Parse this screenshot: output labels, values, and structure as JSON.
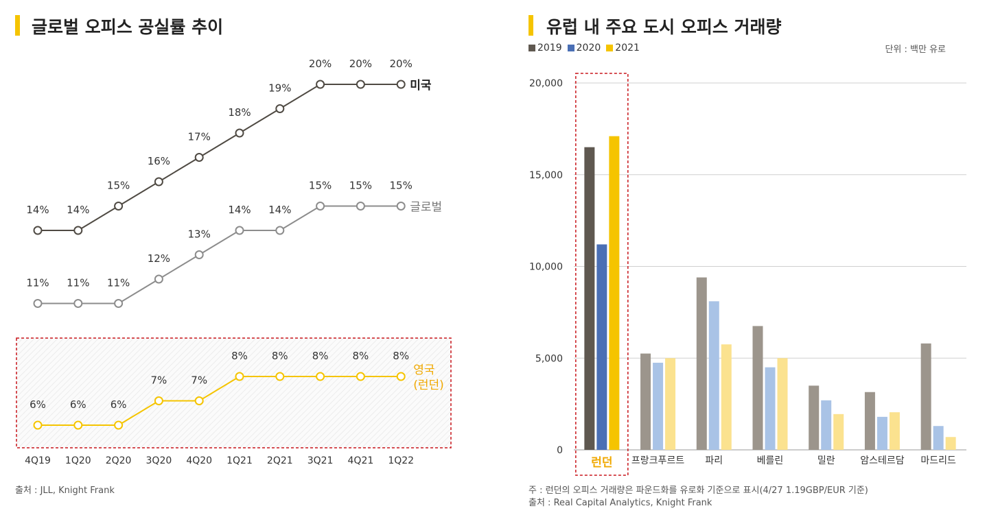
{
  "left": {
    "title": "글로벌 오피스 공실률 추이",
    "source": "출처 : JLL, Knight Frank"
  },
  "right": {
    "title": "유럽 내 주요 도시 오피스 거래량",
    "unit": "단위 : 백만 유로",
    "note": "주 : 런던의 오피스 거래량은 파운드화를 유로화 기준으로 표시(4/27 1.19GBP/EUR 기준)",
    "source": "출처 : Real Capital Analytics, Knight Frank"
  },
  "chart_data": [
    {
      "type": "line",
      "categories": [
        "4Q19",
        "1Q20",
        "2Q20",
        "3Q20",
        "4Q20",
        "1Q21",
        "2Q21",
        "3Q21",
        "4Q21",
        "1Q22"
      ],
      "series": [
        {
          "name": "미국",
          "values": [
            14,
            14,
            15,
            16,
            17,
            18,
            19,
            20,
            20,
            20
          ],
          "color": "#4f4a43"
        },
        {
          "name": "글로벌",
          "values": [
            11,
            11,
            11,
            12,
            13,
            14,
            14,
            15,
            15,
            15
          ],
          "color": "#8c8c8c"
        },
        {
          "name": "영국\n(런던)",
          "values": [
            6,
            6,
            6,
            7,
            7,
            8,
            8,
            8,
            8,
            8
          ],
          "color": "#f5c400"
        }
      ],
      "value_suffix": "%"
    },
    {
      "type": "bar",
      "categories": [
        "런던",
        "프랑크푸르트",
        "파리",
        "베를린",
        "밀란",
        "암스테르담",
        "마드리드"
      ],
      "series": [
        {
          "name": "2019",
          "values": [
            16500,
            5250,
            9400,
            6750,
            3500,
            3150,
            5800
          ],
          "color": "#5f5850",
          "muted": "#9c958c"
        },
        {
          "name": "2020",
          "values": [
            11200,
            4750,
            8100,
            4500,
            2700,
            1800,
            1300
          ],
          "color": "#4a6fb5",
          "muted": "#a9c3e6"
        },
        {
          "name": "2021",
          "values": [
            17100,
            5000,
            5750,
            5000,
            1950,
            2050,
            700
          ],
          "color": "#f5c400",
          "muted": "#fbe28f"
        }
      ],
      "yticks": [
        "0",
        "5,000",
        "10,000",
        "15,000",
        "20,000"
      ],
      "ylim": [
        0,
        20000
      ],
      "highlight": "런던"
    }
  ]
}
